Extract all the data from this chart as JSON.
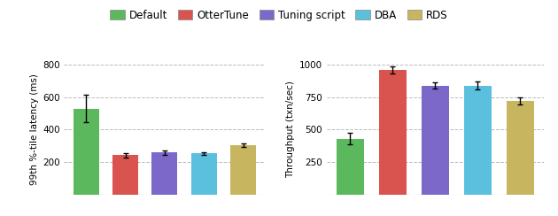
{
  "legend_labels": [
    "Default",
    "OtterTune",
    "Tuning script",
    "DBA",
    "RDS"
  ],
  "colors": [
    "#5cb85c",
    "#d9534f",
    "#7b68c8",
    "#5bc0de",
    "#c8b560"
  ],
  "left_chart": {
    "ylabel": "99th %-tile latency (ms)",
    "ylim": [
      0,
      800
    ],
    "yticks": [
      0,
      200,
      400,
      600,
      800
    ],
    "values": [
      530,
      242,
      258,
      252,
      305
    ],
    "errors": [
      85,
      12,
      15,
      8,
      12
    ]
  },
  "right_chart": {
    "ylabel": "Throughput (txn/sec)",
    "ylim": [
      0,
      1000
    ],
    "yticks": [
      0,
      250,
      500,
      750,
      1000
    ],
    "values": [
      430,
      960,
      840,
      840,
      720
    ],
    "errors": [
      45,
      25,
      25,
      30,
      28
    ]
  },
  "background_color": "#ffffff",
  "grid_color": "#bbbbbb"
}
